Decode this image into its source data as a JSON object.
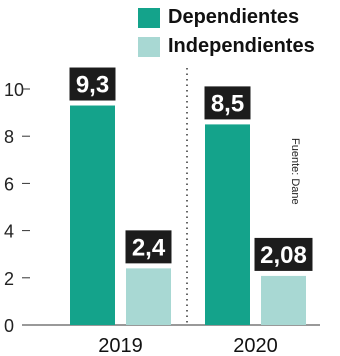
{
  "chart_data": {
    "type": "bar",
    "categories": [
      "2019",
      "2020"
    ],
    "series": [
      {
        "name": "Dependientes",
        "color": "#14a38b",
        "values": [
          9.3,
          8.5
        ],
        "labels": [
          "9,3",
          "8,5"
        ]
      },
      {
        "name": "Independientes",
        "color": "#a8d8d3",
        "values": [
          2.4,
          2.08
        ],
        "labels": [
          "2,4",
          "2,08"
        ]
      }
    ],
    "yticks": [
      0,
      2,
      4,
      6,
      8,
      10
    ],
    "ylim": [
      0,
      10
    ],
    "title": "",
    "xlabel": "",
    "ylabel": "",
    "legend_placement": "top-right",
    "grid": false
  },
  "legend": {
    "dependientes": "Dependientes",
    "independientes": "Independientes"
  },
  "source": "Fuente: Dane",
  "colors": {
    "dependientes": "#14a38b",
    "independientes": "#a8d8d3",
    "label_box": "#1c1c1c",
    "axis": "#333333"
  }
}
